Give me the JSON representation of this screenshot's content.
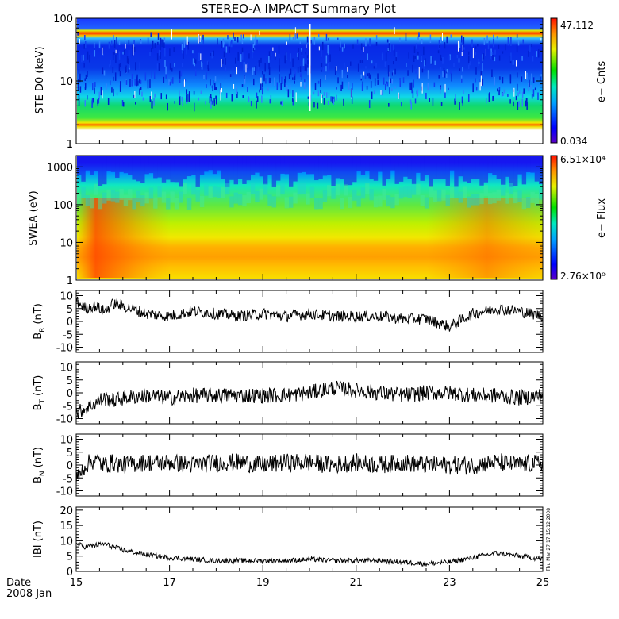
{
  "title": "STEREO-A IMPACT Summary Plot",
  "date_label": "Date",
  "date_value": "2008 Jan",
  "timestamp": "Thu Mar 27 17:15:12 2008",
  "x_ticks": [
    "15",
    "17",
    "19",
    "21",
    "23",
    "25"
  ],
  "chart_data": [
    {
      "type": "heatmap",
      "ylabel": "STE D0 (keV)",
      "ylog": true,
      "ylim": [
        1,
        100
      ],
      "y_ticks": [
        "1",
        "10",
        "100"
      ],
      "xlim": [
        15,
        25
      ],
      "colorbar": {
        "label": "e− Cnts",
        "max_label": "47.112",
        "min_label": "0.034",
        "max": 47.112,
        "min": 0.034
      },
      "description_bands_keV": [
        {
          "energy": 2.0,
          "level": "high"
        },
        {
          "energy": 60,
          "level": "high"
        }
      ]
    },
    {
      "type": "heatmap",
      "ylabel": "SWEA (eV)",
      "ylog": true,
      "ylim": [
        1,
        2000
      ],
      "y_ticks": [
        "1",
        "10",
        "100",
        "1000"
      ],
      "xlim": [
        15,
        25
      ],
      "colorbar": {
        "label": "e− Flux",
        "max_label": "6.51×10⁴",
        "min_label": "2.76×10⁰",
        "max": 65100,
        "min": 2.76
      }
    },
    {
      "type": "line",
      "ylabel": "B_R (nT)",
      "ylabel_main": "B",
      "ylabel_sub": "R",
      "ylabel_unit": "(nT)",
      "ylim": [
        -12,
        12
      ],
      "y_ticks": [
        10,
        5,
        0,
        -5,
        -10
      ],
      "xlim": [
        15,
        25
      ],
      "x": [
        15.0,
        15.2,
        15.4,
        15.6,
        15.8,
        16.0,
        16.5,
        17.0,
        17.5,
        18.0,
        18.5,
        19.0,
        19.5,
        20.0,
        20.5,
        21.0,
        21.5,
        22.0,
        22.5,
        23.0,
        23.5,
        24.0,
        24.5,
        25.0
      ],
      "values": [
        8,
        5,
        6,
        4,
        7,
        6,
        3,
        2,
        4,
        3,
        2,
        3,
        2,
        3,
        2,
        2,
        2,
        1,
        1,
        -2,
        3,
        5,
        4,
        2
      ],
      "noise": 2.2
    },
    {
      "type": "line",
      "ylabel": "B_T (nT)",
      "ylabel_main": "B",
      "ylabel_sub": "T",
      "ylabel_unit": "(nT)",
      "ylim": [
        -12,
        12
      ],
      "y_ticks": [
        10,
        5,
        0,
        -5,
        -10
      ],
      "xlim": [
        15,
        25
      ],
      "x": [
        15.0,
        15.2,
        15.4,
        15.6,
        15.8,
        16.0,
        16.5,
        17.0,
        17.5,
        18.0,
        18.5,
        19.0,
        19.5,
        20.0,
        20.5,
        21.0,
        21.5,
        22.0,
        22.5,
        23.0,
        23.5,
        24.0,
        24.5,
        25.0
      ],
      "values": [
        -8,
        -6,
        -4,
        -2,
        -3,
        -2,
        -1,
        -2,
        -1,
        -1,
        -1,
        -1,
        -1,
        0,
        2,
        1,
        0,
        -1,
        0,
        0,
        -1,
        -1,
        -2,
        -1
      ],
      "noise": 3.0
    },
    {
      "type": "line",
      "ylabel": "B_N (nT)",
      "ylabel_main": "B",
      "ylabel_sub": "N",
      "ylabel_unit": "(nT)",
      "ylim": [
        -12,
        12
      ],
      "y_ticks": [
        10,
        5,
        0,
        -5,
        -10
      ],
      "xlim": [
        15,
        25
      ],
      "x": [
        15.0,
        15.2,
        15.4,
        15.6,
        15.8,
        16.0,
        16.5,
        17.0,
        17.5,
        18.0,
        18.5,
        19.0,
        19.5,
        20.0,
        20.5,
        21.0,
        21.5,
        22.0,
        22.5,
        23.0,
        23.5,
        24.0,
        24.5,
        25.0
      ],
      "values": [
        -6,
        0,
        2,
        0,
        1,
        0,
        1,
        1,
        0,
        1,
        1,
        0,
        1,
        1,
        0,
        1,
        0,
        1,
        0,
        0,
        0,
        1,
        0,
        1
      ],
      "noise": 3.5
    },
    {
      "type": "line",
      "ylabel": "|B| (nT)",
      "ylabel_main": "IBI",
      "ylabel_sub": "",
      "ylabel_unit": "(nT)",
      "ylim": [
        0,
        21
      ],
      "y_ticks": [
        20,
        15,
        10,
        5,
        0
      ],
      "xlim": [
        15,
        25
      ],
      "x": [
        15.0,
        15.2,
        15.4,
        15.6,
        15.8,
        16.0,
        16.5,
        17.0,
        17.5,
        18.0,
        18.5,
        19.0,
        19.5,
        20.0,
        20.5,
        21.0,
        21.5,
        22.0,
        22.5,
        23.0,
        23.5,
        24.0,
        24.5,
        25.0
      ],
      "values": [
        9,
        8,
        8.5,
        9,
        8,
        7,
        5.5,
        4.5,
        4,
        3.5,
        3.5,
        3.5,
        3.5,
        4,
        3.5,
        3.5,
        3.5,
        3,
        2.5,
        3,
        4.5,
        6,
        5,
        4
      ],
      "noise": 0.8
    }
  ]
}
